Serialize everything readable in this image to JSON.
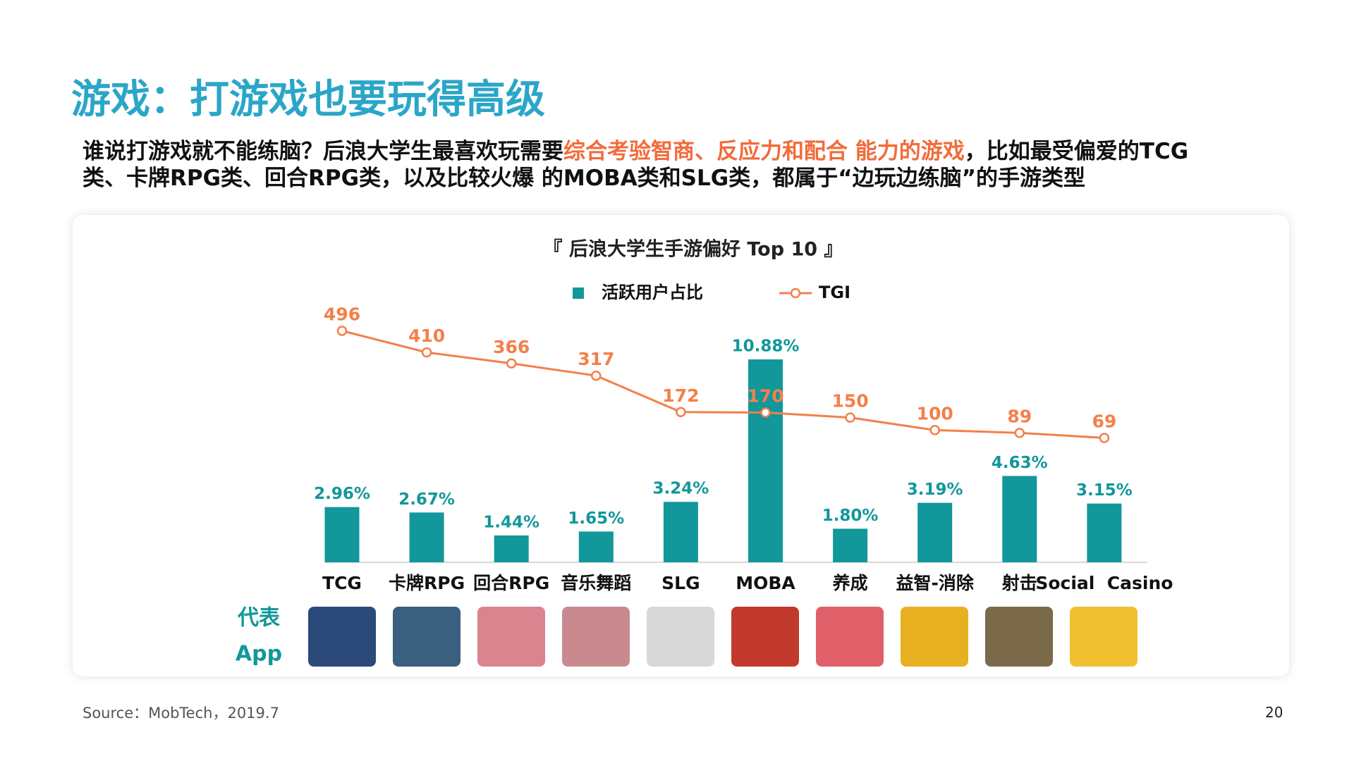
{
  "header": {
    "title": "游戏：打游戏也要玩得高级",
    "subtitle": [
      "谁说打游戏就不能练脑？后浪大学生最喜欢玩需要",
      "综合考验智商、反应力和配合 能力的游戏",
      "，比如最受偏爱的TCG",
      "类、卡牌RPG类、回合RPG类，以及比较火爆 的MOBA类和SLG类，都属于“边玩边练脑”的手游类型"
    ]
  },
  "chart_data": {
    "type": "bar",
    "title": "『 后浪大学生手游偏好 Top 10 』",
    "categories": [
      "TCG",
      "卡牌RPG",
      "回合RPG",
      "音乐舞蹈",
      "SLG",
      "MOBA",
      "养成",
      "益智-消除",
      "射击",
      "Social  Casino"
    ],
    "series": [
      {
        "name": "活跃用户占比",
        "color": "#12979a",
        "values": [
          2.96,
          2.67,
          1.44,
          1.65,
          3.24,
          10.88,
          1.8,
          3.19,
          4.63,
          3.15
        ],
        "value_labels": [
          "2.96%",
          "2.67%",
          "1.44%",
          "1.65%",
          "3.24%",
          "10.88%",
          "1.80%",
          "3.19%",
          "4.63%",
          "3.15%"
        ]
      },
      {
        "name": "TGI",
        "type": "line",
        "axis": "y2",
        "color": "#f47f4a",
        "values": [
          496,
          410,
          366,
          317,
          172,
          170,
          150,
          100,
          89,
          69
        ]
      }
    ],
    "ylim": [
      0,
      13.3
    ],
    "y2lim": [
      -427,
      562
    ],
    "legend": "top"
  },
  "app_label": [
    "代表",
    "App"
  ],
  "footer": {
    "source": "Source：MobTech，2019.7",
    "page": "20"
  }
}
